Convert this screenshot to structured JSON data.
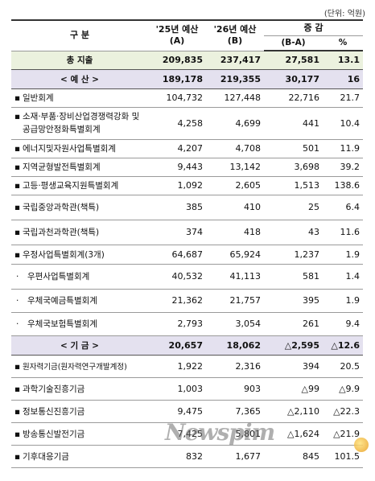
{
  "unit_label": "(단위: 억원)",
  "header": {
    "category": "구   분",
    "col_a_line1": "'25년 예산",
    "col_a_line2": "(A)",
    "col_b_line1": "'26년 예산",
    "col_b_line2": "(B)",
    "change": "증 감",
    "change_amount": "(B-A)",
    "change_pct": "%"
  },
  "rows": [
    {
      "name": "총 지출",
      "a": "209,835",
      "b": "237,417",
      "d": "27,581",
      "p": "13.1"
    },
    {
      "name": "< 예 산 >",
      "a": "189,178",
      "b": "219,355",
      "d": "30,177",
      "p": "16"
    },
    {
      "name": "일반회계",
      "a": "104,732",
      "b": "127,448",
      "d": "22,716",
      "p": "21.7"
    },
    {
      "name_l1": "소재·부품·장비산업경쟁력강화 및",
      "name_l2": "공급망안정화특별회계",
      "a": "4,258",
      "b": "4,699",
      "d": "441",
      "p": "10.4"
    },
    {
      "name": "에너지및자원사업특별회계",
      "a": "4,207",
      "b": "4,708",
      "d": "501",
      "p": "11.9"
    },
    {
      "name": "지역균형발전특별회계",
      "a": "9,443",
      "b": "13,142",
      "d": "3,698",
      "p": "39.2"
    },
    {
      "name": "고등·평생교육지원특별회계",
      "a": "1,092",
      "b": "2,605",
      "d": "1,513",
      "p": "138.6"
    },
    {
      "name": "국립중앙과학관(책특)",
      "a": "385",
      "b": "410",
      "d": "25",
      "p": "6.4"
    },
    {
      "name": "국립과천과학관(책특)",
      "a": "374",
      "b": "418",
      "d": "43",
      "p": "11.6"
    },
    {
      "name": "우정사업특별회계(3개)",
      "a": "64,687",
      "b": "65,924",
      "d": "1,237",
      "p": "1.9"
    },
    {
      "name": "우편사업특별회계",
      "a": "40,532",
      "b": "41,113",
      "d": "581",
      "p": "1.4"
    },
    {
      "name": "우체국예금특별회계",
      "a": "21,362",
      "b": "21,757",
      "d": "395",
      "p": "1.9"
    },
    {
      "name": "우체국보험특별회계",
      "a": "2,793",
      "b": "3,054",
      "d": "261",
      "p": "9.4"
    },
    {
      "name": "< 기 금 >",
      "a": "20,657",
      "b": "18,062",
      "d": "△2,595",
      "p": "△12.6"
    },
    {
      "name": "원자력기금(원자력연구개발계정)",
      "a": "1,922",
      "b": "2,316",
      "d": "394",
      "p": "20.5"
    },
    {
      "name": "과학기술진흥기금",
      "a": "1,003",
      "b": "903",
      "d": "△99",
      "p": "△9.9"
    },
    {
      "name": "정보통신진흥기금",
      "a": "9,475",
      "b": "7,365",
      "d": "△2,110",
      "p": "△22.3"
    },
    {
      "name": "방송통신발전기금",
      "a": "7,425",
      "b": "5,801",
      "d": "△1,624",
      "p": "△21.9"
    },
    {
      "name": "기후대응기금",
      "a": "832",
      "b": "1,677",
      "d": "845",
      "p": "101.5"
    }
  ],
  "bullets": {
    "main": "▪",
    "sub": "·"
  },
  "watermark": "Newspim"
}
